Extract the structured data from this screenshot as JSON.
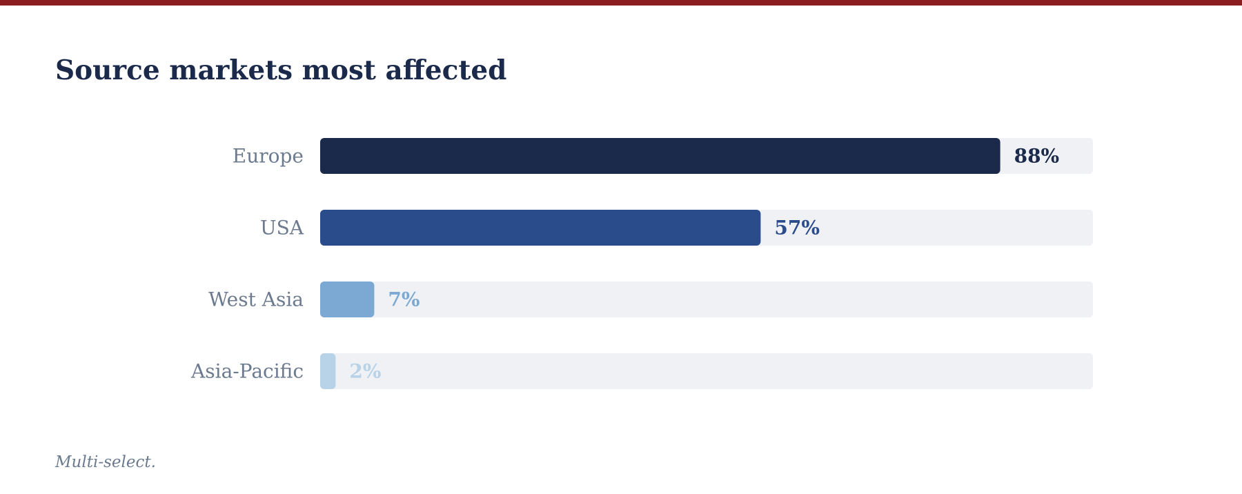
{
  "title": "Source markets most affected",
  "footnote": "Multi-select.",
  "colors": {
    "top_rule": "#8b1c1f",
    "title": "#1b2a4a",
    "category_label": "#6b7a8f",
    "track": "#f0f1f5"
  },
  "chart_data": {
    "type": "bar",
    "orientation": "horizontal",
    "title": "Source markets most affected",
    "xlabel": "",
    "ylabel": "",
    "xlim": [
      0,
      100
    ],
    "grid": false,
    "legend": "none",
    "categories": [
      "Europe",
      "USA",
      "West Asia",
      "Asia-Pacific"
    ],
    "values": [
      88,
      57,
      7,
      2
    ],
    "value_labels": [
      "88%",
      "57%",
      "7%",
      "2%"
    ],
    "bar_colors": [
      "#1b2a4a",
      "#2b4c8b",
      "#7ba9d3",
      "#b8d3e8"
    ]
  }
}
